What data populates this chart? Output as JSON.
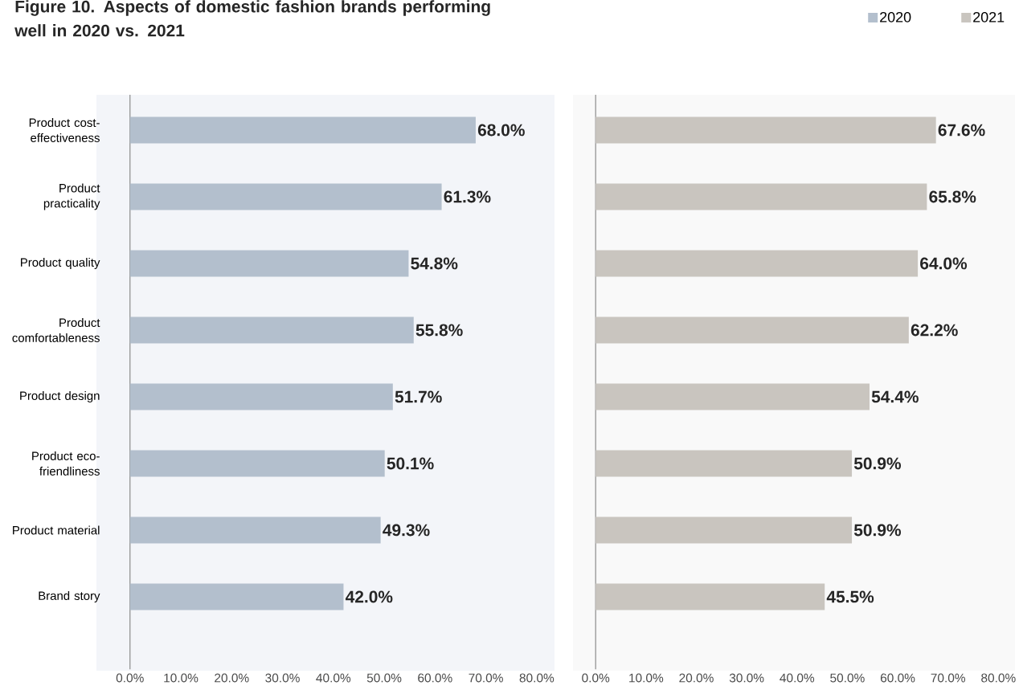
{
  "chart_data": [
    {
      "type": "bar",
      "orientation": "horizontal",
      "title": "Figure 10. Aspects of domestic fashion brands performing well in 2020 vs. 2021",
      "categories": [
        "Product cost-effectiveness",
        "Product practicality",
        "Product quality",
        "Product comfortableness",
        "Product design",
        "Product eco-friendliness",
        "Product material",
        "Brand story"
      ],
      "series": [
        {
          "name": "2020",
          "color": "#b3bfcd",
          "values": [
            68.0,
            61.3,
            54.8,
            55.8,
            51.7,
            50.1,
            49.3,
            42.0
          ],
          "value_labels": [
            "68.0%",
            "61.3%",
            "54.8%",
            "55.8%",
            "51.7%",
            "50.1%",
            "49.3%",
            "42.0%"
          ]
        }
      ],
      "xlim": [
        -6.6,
        83.5
      ],
      "xticks": [
        {
          "value": 0,
          "label": "0.0%"
        },
        {
          "value": 10,
          "label": "10.0%"
        },
        {
          "value": 20,
          "label": "20.0%"
        },
        {
          "value": 30,
          "label": "30.0%"
        },
        {
          "value": 40,
          "label": "40.0%"
        },
        {
          "value": 50,
          "label": "50.0%"
        },
        {
          "value": 60,
          "label": "60.0%"
        },
        {
          "value": 70,
          "label": "70.0%"
        },
        {
          "value": 80,
          "label": "80.0%"
        }
      ],
      "legend": "top right"
    },
    {
      "type": "bar",
      "orientation": "horizontal",
      "categories": [
        null,
        null,
        null,
        null,
        null,
        null,
        null,
        null
      ],
      "series": [
        {
          "name": "2021",
          "color": "#c9c5bf",
          "values": [
            67.6,
            65.8,
            64.0,
            62.2,
            54.4,
            50.9,
            50.9,
            45.5
          ],
          "value_labels": [
            "67.6%",
            "65.8%",
            "64.0%",
            "62.2%",
            "54.4%",
            "50.9%",
            "50.9%",
            "45.5%"
          ]
        }
      ],
      "xlim": [
        -4.5,
        83.3
      ],
      "xticks": [
        {
          "value": 0,
          "label": "0.0%"
        },
        {
          "value": 10,
          "label": "10.0%"
        },
        {
          "value": 20,
          "label": "20.0%"
        },
        {
          "value": 30,
          "label": "30.0%"
        },
        {
          "value": 40,
          "label": "40.0%"
        },
        {
          "value": 50,
          "label": "50.0%"
        },
        {
          "value": 60,
          "label": "60.0%"
        },
        {
          "value": 70,
          "label": "70.0%"
        },
        {
          "value": 80,
          "label": "80.0%"
        }
      ],
      "tick_labels": "x",
      "legend": "top right"
    }
  ]
}
